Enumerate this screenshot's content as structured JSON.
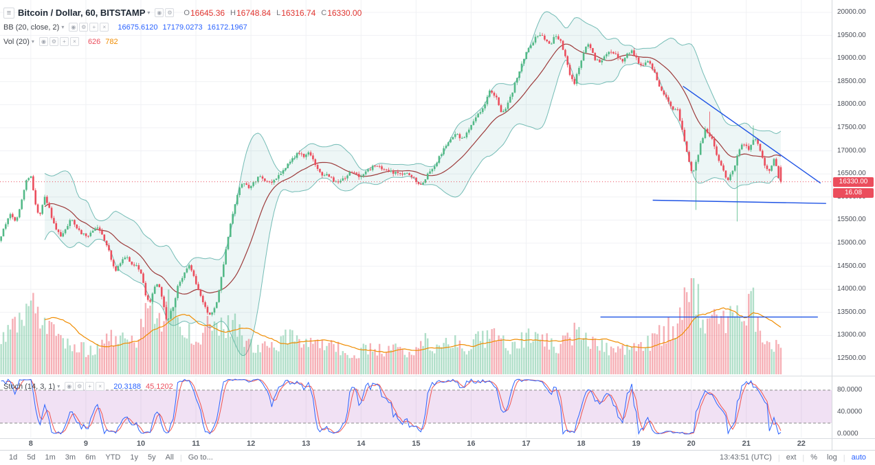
{
  "header": {
    "symbol_title": "Bitcoin / Dollar, 60, BITSTAMP",
    "ohlc": {
      "o_label": "O",
      "o": "16645.36",
      "h_label": "H",
      "h": "16748.84",
      "l_label": "L",
      "l": "16316.74",
      "c_label": "C",
      "c": "16330.00"
    }
  },
  "indicators": {
    "bb": {
      "label": "BB (20, close, 2)",
      "values": [
        "16675.6120",
        "17179.0273",
        "16172.1967"
      ]
    },
    "vol": {
      "label": "Vol (20)",
      "values": [
        "626",
        "782"
      ]
    },
    "stoch": {
      "label": "Stoch (14, 3, 1)",
      "values": [
        "20.3188",
        "45.1202"
      ]
    }
  },
  "icons": {
    "menu": "≡",
    "caret": "▾",
    "eye": "◉",
    "settings": "⚙",
    "add": "+",
    "close": "×"
  },
  "price_axis": {
    "badge_price": "16330.00",
    "badge_secondary": "16.08"
  },
  "toolbar": {
    "ranges": [
      "1d",
      "5d",
      "1m",
      "3m",
      "6m",
      "YTD",
      "1y",
      "5y",
      "All"
    ],
    "goto": "Go to...",
    "clock": "13:43:51 (UTC)",
    "ext": "ext",
    "percent": "%",
    "log": "log",
    "auto": "auto"
  },
  "colors": {
    "up": "#53b987",
    "down": "#eb4d5c",
    "bb_fill": "rgba(0,128,128,0.07)",
    "bb_line": "rgba(8,137,123,0.55)",
    "bb_basis": "#9c3a3a",
    "vol_up": "rgba(83,185,135,0.45)",
    "vol_down": "rgba(235,77,92,0.45)",
    "vol_ma": "#f08c00",
    "stoch_k": "#2962ff",
    "stoch_d": "#ef5350",
    "band_fill": "rgba(156,39,176,0.14)",
    "band_border": "#8a8a8a",
    "trendline": "#1e53e5",
    "price_line": "#eb4d5c",
    "grid": "#f0f1f4"
  },
  "chart_data": {
    "type": "candlestick",
    "title": "Bitcoin / Dollar, 60, BITSTAMP",
    "interval_minutes": 60,
    "ohlc_current": {
      "open": 16645.36,
      "high": 16748.84,
      "low": 16316.74,
      "close": 16330.0
    },
    "bb": {
      "length": 20,
      "source": "close",
      "stdev": 2,
      "basis": 16675.612,
      "upper": 17179.0273,
      "lower": 16172.1967
    },
    "volume": {
      "ma_length": 20,
      "current": 626,
      "ma": 782
    },
    "stoch": {
      "k": 14,
      "d": 3,
      "smooth": 1,
      "k_value": 20.3188,
      "d_value": 45.1202,
      "upper_band": 80,
      "lower_band": 20
    },
    "x_axis": {
      "labels": [
        "8",
        "9",
        "10",
        "11",
        "12",
        "13",
        "14",
        "15",
        "16",
        "17",
        "18",
        "19",
        "20",
        "21",
        "22"
      ],
      "day_min": 7.44,
      "day_max": 22.55,
      "data_start": 7.44,
      "data_end": 21.62
    },
    "y_axis": {
      "min": 12500,
      "max": 20000,
      "tick_step": 500,
      "ticks": [
        20000,
        19500,
        19000,
        18500,
        18000,
        17500,
        17000,
        16500,
        16000,
        15500,
        15000,
        14500,
        14000,
        13500,
        13000,
        12500
      ]
    },
    "stoch_axis": {
      "ticks": [
        80,
        40,
        0
      ]
    },
    "current_price": 16330.0,
    "price_waypoints": [
      [
        7.44,
        15050
      ],
      [
        7.55,
        15350
      ],
      [
        7.65,
        15650
      ],
      [
        7.75,
        15400
      ],
      [
        7.85,
        15950
      ],
      [
        7.95,
        16400
      ],
      [
        8.02,
        16450
      ],
      [
        8.1,
        15900
      ],
      [
        8.18,
        15550
      ],
      [
        8.27,
        16050
      ],
      [
        8.35,
        15800
      ],
      [
        8.45,
        15350
      ],
      [
        8.55,
        15150
      ],
      [
        8.65,
        15300
      ],
      [
        8.75,
        15500
      ],
      [
        8.85,
        15350
      ],
      [
        8.95,
        15200
      ],
      [
        9.05,
        15150
      ],
      [
        9.15,
        15300
      ],
      [
        9.25,
        15350
      ],
      [
        9.35,
        15100
      ],
      [
        9.45,
        14800
      ],
      [
        9.55,
        14400
      ],
      [
        9.65,
        14600
      ],
      [
        9.75,
        14700
      ],
      [
        9.85,
        14550
      ],
      [
        9.95,
        14500
      ],
      [
        10.03,
        14350
      ],
      [
        10.1,
        13900
      ],
      [
        10.18,
        13650
      ],
      [
        10.25,
        14000
      ],
      [
        10.33,
        14150
      ],
      [
        10.42,
        13700
      ],
      [
        10.5,
        13300
      ],
      [
        10.6,
        13600
      ],
      [
        10.7,
        14100
      ],
      [
        10.8,
        14350
      ],
      [
        10.9,
        14500
      ],
      [
        10.98,
        14300
      ],
      [
        11.08,
        13900
      ],
      [
        11.18,
        13600
      ],
      [
        11.28,
        13400
      ],
      [
        11.38,
        13650
      ],
      [
        11.48,
        14250
      ],
      [
        11.58,
        14950
      ],
      [
        11.68,
        15600
      ],
      [
        11.78,
        16100
      ],
      [
        11.88,
        16350
      ],
      [
        11.98,
        16200
      ],
      [
        12.08,
        16300
      ],
      [
        12.18,
        16450
      ],
      [
        12.28,
        16350
      ],
      [
        12.38,
        16300
      ],
      [
        12.48,
        16400
      ],
      [
        12.58,
        16550
      ],
      [
        12.68,
        16700
      ],
      [
        12.78,
        16850
      ],
      [
        12.88,
        16950
      ],
      [
        12.98,
        16900
      ],
      [
        13.06,
        17000
      ],
      [
        13.14,
        16850
      ],
      [
        13.22,
        16600
      ],
      [
        13.32,
        16500
      ],
      [
        13.42,
        16450
      ],
      [
        13.52,
        16350
      ],
      [
        13.62,
        16300
      ],
      [
        13.72,
        16400
      ],
      [
        13.82,
        16550
      ],
      [
        13.92,
        16500
      ],
      [
        14.02,
        16450
      ],
      [
        14.12,
        16550
      ],
      [
        14.22,
        16650
      ],
      [
        14.32,
        16700
      ],
      [
        14.42,
        16600
      ],
      [
        14.52,
        16550
      ],
      [
        14.62,
        16500
      ],
      [
        14.72,
        16550
      ],
      [
        14.82,
        16500
      ],
      [
        14.92,
        16450
      ],
      [
        15.0,
        16400
      ],
      [
        15.08,
        16250
      ],
      [
        15.16,
        16350
      ],
      [
        15.26,
        16550
      ],
      [
        15.36,
        16700
      ],
      [
        15.46,
        16900
      ],
      [
        15.56,
        17100
      ],
      [
        15.66,
        17300
      ],
      [
        15.76,
        17350
      ],
      [
        15.86,
        17250
      ],
      [
        15.96,
        17400
      ],
      [
        16.06,
        17600
      ],
      [
        16.16,
        17800
      ],
      [
        16.26,
        18000
      ],
      [
        16.36,
        18300
      ],
      [
        16.46,
        18200
      ],
      [
        16.56,
        17850
      ],
      [
        16.66,
        17950
      ],
      [
        16.76,
        18250
      ],
      [
        16.86,
        18600
      ],
      [
        16.96,
        18950
      ],
      [
        17.06,
        19200
      ],
      [
        17.16,
        19400
      ],
      [
        17.26,
        19550
      ],
      [
        17.36,
        19400
      ],
      [
        17.46,
        19300
      ],
      [
        17.56,
        19500
      ],
      [
        17.66,
        19350
      ],
      [
        17.74,
        19000
      ],
      [
        17.82,
        18600
      ],
      [
        17.9,
        18450
      ],
      [
        17.98,
        18800
      ],
      [
        18.06,
        19150
      ],
      [
        18.16,
        19300
      ],
      [
        18.26,
        19000
      ],
      [
        18.36,
        18900
      ],
      [
        18.46,
        19100
      ],
      [
        18.56,
        19150
      ],
      [
        18.66,
        19050
      ],
      [
        18.76,
        18950
      ],
      [
        18.86,
        19100
      ],
      [
        18.96,
        19150
      ],
      [
        19.06,
        18900
      ],
      [
        19.16,
        18850
      ],
      [
        19.26,
        18950
      ],
      [
        19.36,
        18650
      ],
      [
        19.46,
        18350
      ],
      [
        19.56,
        18150
      ],
      [
        19.66,
        17900
      ],
      [
        19.76,
        17950
      ],
      [
        19.86,
        17450
      ],
      [
        19.96,
        16900
      ],
      [
        20.03,
        16500
      ],
      [
        20.1,
        16700
      ],
      [
        20.18,
        17100
      ],
      [
        20.28,
        17500
      ],
      [
        20.38,
        17300
      ],
      [
        20.48,
        16950
      ],
      [
        20.58,
        16600
      ],
      [
        20.68,
        16350
      ],
      [
        20.78,
        16550
      ],
      [
        20.86,
        16900
      ],
      [
        20.96,
        17200
      ],
      [
        21.06,
        17000
      ],
      [
        21.16,
        17300
      ],
      [
        21.26,
        17050
      ],
      [
        21.36,
        16700
      ],
      [
        21.46,
        16550
      ],
      [
        21.52,
        16800
      ],
      [
        21.58,
        16650
      ],
      [
        21.62,
        16330
      ]
    ],
    "volume_waypoints": [
      [
        7.44,
        32
      ],
      [
        7.6,
        45
      ],
      [
        7.8,
        58
      ],
      [
        7.95,
        90
      ],
      [
        8.05,
        95
      ],
      [
        8.15,
        70
      ],
      [
        8.3,
        48
      ],
      [
        8.5,
        38
      ],
      [
        8.7,
        30
      ],
      [
        9.0,
        26
      ],
      [
        9.2,
        28
      ],
      [
        9.45,
        46
      ],
      [
        9.7,
        32
      ],
      [
        9.95,
        40
      ],
      [
        10.1,
        80
      ],
      [
        10.3,
        55
      ],
      [
        10.5,
        72
      ],
      [
        10.7,
        52
      ],
      [
        10.9,
        40
      ],
      [
        11.1,
        46
      ],
      [
        11.3,
        62
      ],
      [
        11.5,
        52
      ],
      [
        11.7,
        56
      ],
      [
        11.9,
        36
      ],
      [
        12.1,
        30
      ],
      [
        12.3,
        28
      ],
      [
        12.5,
        33
      ],
      [
        12.7,
        48
      ],
      [
        12.9,
        32
      ],
      [
        13.1,
        36
      ],
      [
        13.3,
        30
      ],
      [
        13.5,
        28
      ],
      [
        13.7,
        25
      ],
      [
        13.9,
        23
      ],
      [
        14.1,
        28
      ],
      [
        14.3,
        25
      ],
      [
        14.5,
        30
      ],
      [
        14.7,
        26
      ],
      [
        14.9,
        23
      ],
      [
        15.1,
        36
      ],
      [
        15.3,
        30
      ],
      [
        15.5,
        40
      ],
      [
        15.7,
        34
      ],
      [
        15.9,
        30
      ],
      [
        16.1,
        36
      ],
      [
        16.3,
        42
      ],
      [
        16.5,
        36
      ],
      [
        16.7,
        30
      ],
      [
        16.9,
        38
      ],
      [
        17.1,
        42
      ],
      [
        17.3,
        36
      ],
      [
        17.5,
        30
      ],
      [
        17.7,
        36
      ],
      [
        17.9,
        46
      ],
      [
        18.1,
        36
      ],
      [
        18.3,
        30
      ],
      [
        18.5,
        26
      ],
      [
        18.7,
        28
      ],
      [
        18.9,
        26
      ],
      [
        19.1,
        30
      ],
      [
        19.3,
        36
      ],
      [
        19.5,
        46
      ],
      [
        19.7,
        52
      ],
      [
        19.85,
        78
      ],
      [
        19.95,
        100
      ],
      [
        20.05,
        92
      ],
      [
        20.15,
        62
      ],
      [
        20.3,
        52
      ],
      [
        20.45,
        56
      ],
      [
        20.6,
        62
      ],
      [
        20.75,
        66
      ],
      [
        20.85,
        56
      ],
      [
        20.95,
        52
      ],
      [
        21.05,
        88
      ],
      [
        21.15,
        62
      ],
      [
        21.25,
        46
      ],
      [
        21.35,
        40
      ],
      [
        21.45,
        36
      ],
      [
        21.55,
        30
      ],
      [
        21.62,
        26
      ]
    ],
    "spike_lows": [
      [
        20.05,
        15720
      ],
      [
        20.82,
        15470
      ]
    ],
    "spike_highs": [
      [
        20.3,
        17850
      ],
      [
        21.12,
        17550
      ]
    ],
    "trendlines": [
      {
        "x1": 19.85,
        "p1": 18400,
        "x2": 22.35,
        "p2": 16300
      },
      {
        "x1": 19.3,
        "p1": 15930,
        "x2": 22.45,
        "p2": 15860
      },
      {
        "x1": 18.35,
        "p1": 13400,
        "x2": 22.3,
        "p2": 13400
      }
    ]
  }
}
